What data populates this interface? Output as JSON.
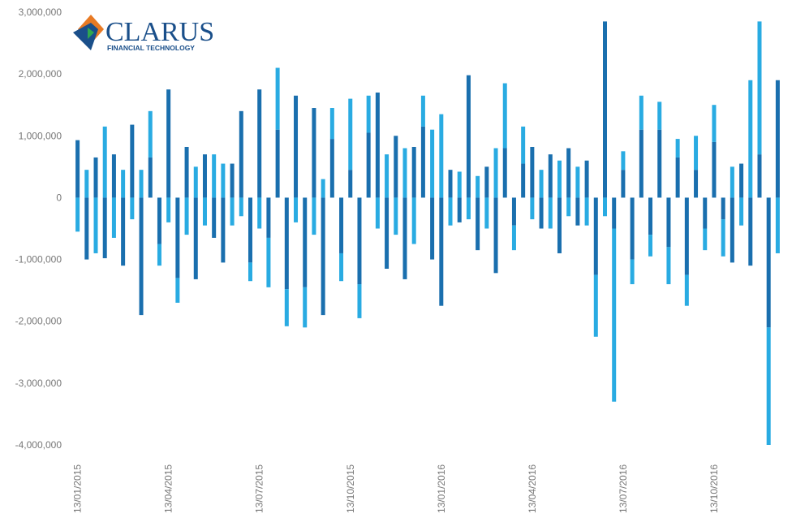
{
  "chart_data": {
    "type": "stacked-bar",
    "annotations": [
      "CLARUS",
      "FINANCIAL TECHNOLOGY"
    ],
    "categories": [
      "13/01/2015",
      null,
      null,
      null,
      null,
      null,
      null,
      null,
      null,
      null,
      "13/04/2015",
      null,
      null,
      null,
      null,
      null,
      null,
      null,
      null,
      null,
      "13/07/2015",
      null,
      null,
      null,
      null,
      null,
      null,
      null,
      null,
      null,
      "13/10/2015",
      null,
      null,
      null,
      null,
      null,
      null,
      null,
      null,
      null,
      "13/01/2016",
      null,
      null,
      null,
      null,
      null,
      null,
      null,
      null,
      null,
      "13/04/2016",
      null,
      null,
      null,
      null,
      null,
      null,
      null,
      null,
      null,
      "13/07/2016",
      null,
      null,
      null,
      null,
      null,
      null,
      null,
      null,
      null,
      "13/10/2016",
      null,
      null,
      null,
      null,
      null,
      null,
      null
    ],
    "series": [
      {
        "color": "#1a6fae",
        "values": [
          930000,
          -1000000,
          650000,
          -980000,
          700000,
          -1100000,
          1180000,
          -1900000,
          650000,
          -750000,
          1750000,
          -1300000,
          820000,
          -1320000,
          700000,
          -650000,
          -1050000,
          550000,
          1400000,
          -1050000,
          1750000,
          -650000,
          1100000,
          -1480000,
          1650000,
          -1450000,
          1450000,
          -1900000,
          950000,
          -900000,
          450000,
          -1400000,
          1050000,
          1700000,
          -1150000,
          1000000,
          -1320000,
          820000,
          1150000,
          -1000000,
          -1750000,
          450000,
          -400000,
          1980000,
          -850000,
          500000,
          -1220000,
          800000,
          -450000,
          550000,
          820000,
          -500000,
          700000,
          -900000,
          800000,
          -450000,
          600000,
          -1250000,
          2850000,
          -500000,
          450000,
          -1000000,
          1100000,
          -600000,
          1100000,
          -800000,
          650000,
          -1250000,
          450000,
          -500000,
          900000,
          -350000,
          -1050000,
          550000,
          -1100000,
          700000,
          -2100000,
          1900000
        ]
      },
      {
        "color": "#29abe2",
        "values": [
          -550000,
          450000,
          -900000,
          1150000,
          -650000,
          450000,
          -350000,
          450000,
          750000,
          -350000,
          -400000,
          -400000,
          -600000,
          500000,
          -450000,
          700000,
          550000,
          -450000,
          -300000,
          -300000,
          -500000,
          -800000,
          1000000,
          -600000,
          -400000,
          -650000,
          -600000,
          300000,
          500000,
          -450000,
          1150000,
          -550000,
          600000,
          -500000,
          700000,
          -600000,
          800000,
          -750000,
          500000,
          1100000,
          1350000,
          -450000,
          420000,
          -350000,
          350000,
          -500000,
          800000,
          1050000,
          -400000,
          600000,
          -350000,
          450000,
          -500000,
          600000,
          -300000,
          500000,
          -450000,
          -1000000,
          -300000,
          -2800000,
          300000,
          -400000,
          550000,
          -350000,
          450000,
          -600000,
          300000,
          -500000,
          550000,
          -350000,
          600000,
          -600000,
          500000,
          -450000,
          1900000,
          2150000,
          -1900000,
          -900000
        ]
      }
    ],
    "ylim": [
      -4000000,
      3000000
    ],
    "yticks": [
      {
        "value": 3000000,
        "label": "3,000,000"
      },
      {
        "value": 2000000,
        "label": "2,000,000"
      },
      {
        "value": 1000000,
        "label": "1,000,000"
      },
      0,
      {
        "value": -1000000,
        "label": "-1,000,000"
      },
      {
        "value": -2000000,
        "label": "-2,000,000"
      },
      {
        "value": -3000000,
        "label": "-3,000,000"
      },
      {
        "value": -4000000,
        "label": "-4,000,000"
      }
    ],
    "grid": false
  }
}
